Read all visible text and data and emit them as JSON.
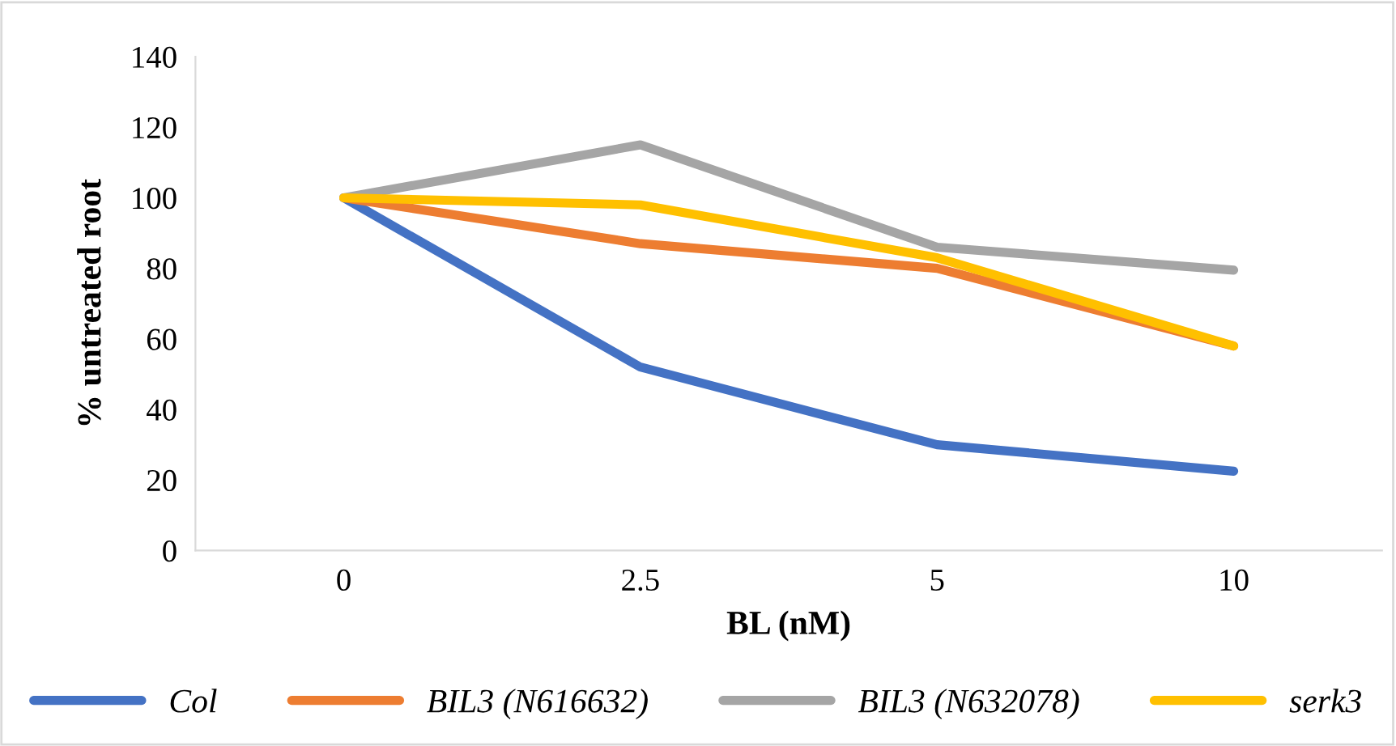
{
  "chart_data": {
    "type": "line",
    "xlabel": "BL (nM)",
    "ylabel": "% untreated root",
    "categories": [
      "0",
      "2.5",
      "5",
      "10"
    ],
    "ylim": [
      0,
      140
    ],
    "yticks": [
      0,
      20,
      40,
      60,
      80,
      100,
      120,
      140
    ],
    "grid": false,
    "legend": "bottom",
    "marker": "none",
    "line_style": "solid",
    "series": [
      {
        "name": "Col",
        "color": "#4472c4",
        "values": [
          100,
          52,
          30,
          22.5
        ]
      },
      {
        "name": "BIL3 (N616632)",
        "color": "#ed7d31",
        "values": [
          100,
          87,
          80,
          58
        ]
      },
      {
        "name": "BIL3 (N632078)",
        "color": "#a5a5a5",
        "values": [
          100,
          115,
          86,
          79.5
        ]
      },
      {
        "name": "serk3",
        "color": "#ffc000",
        "values": [
          100,
          98,
          83,
          58
        ]
      }
    ]
  }
}
